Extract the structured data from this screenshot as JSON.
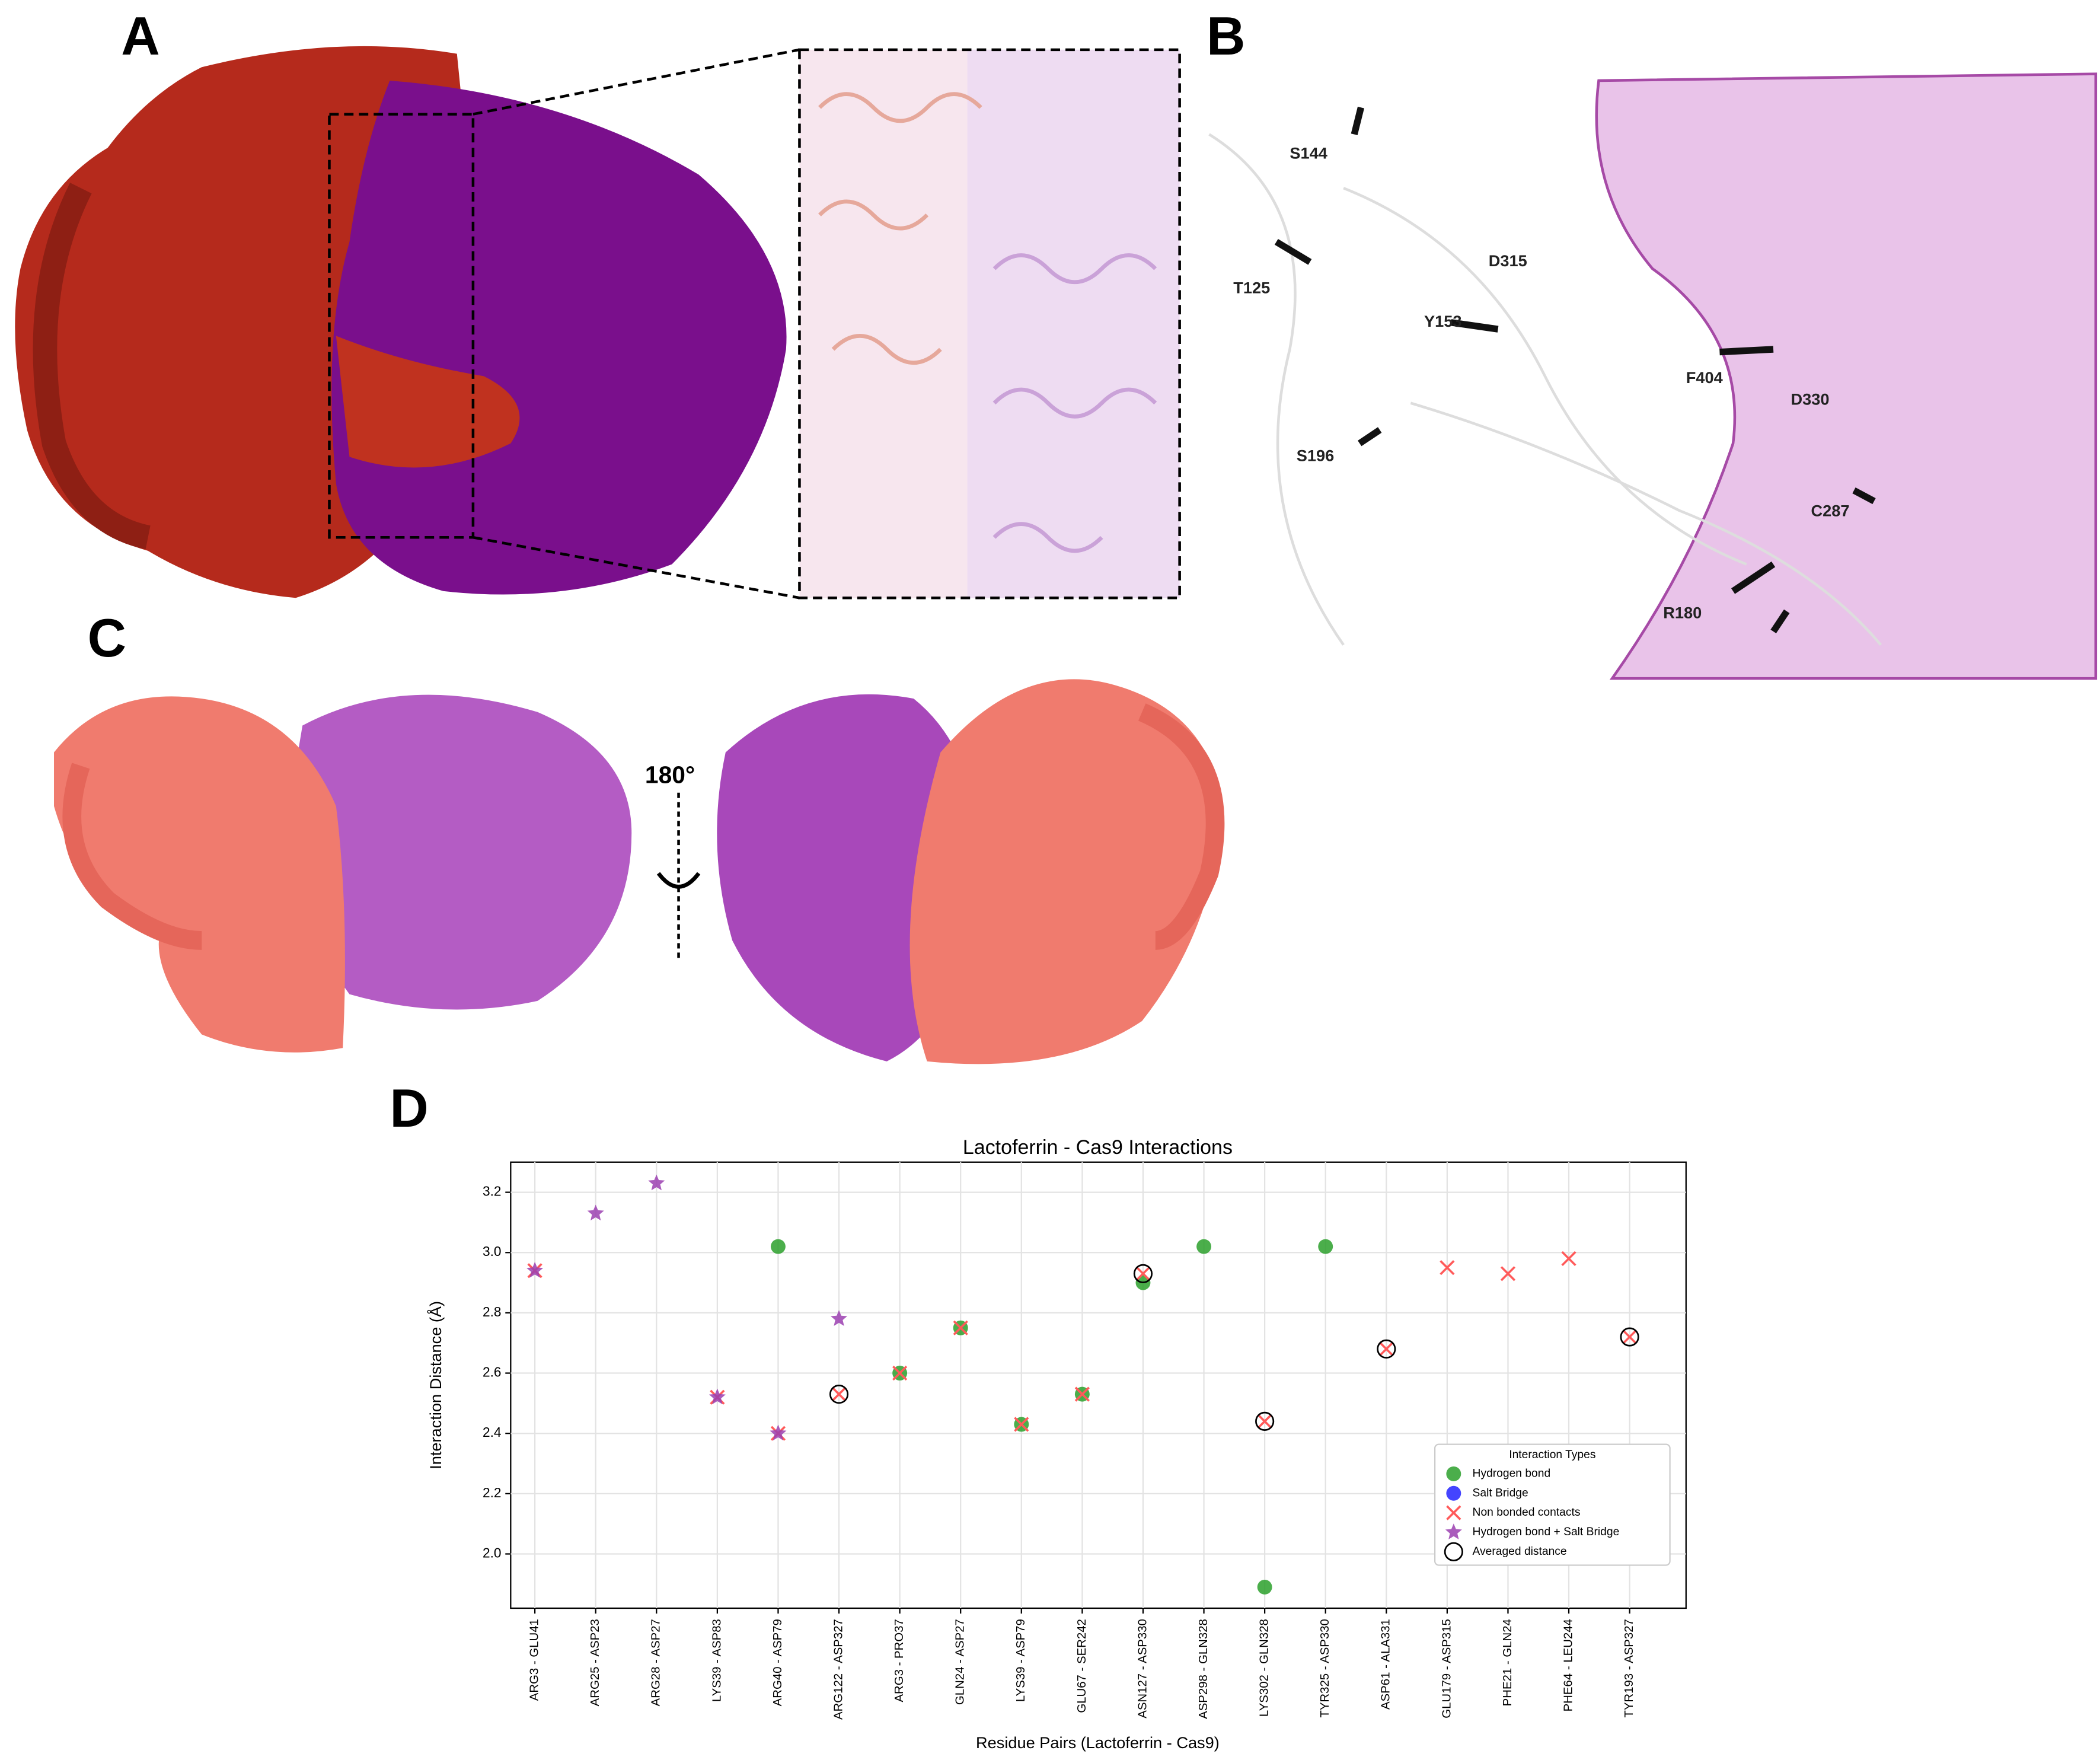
{
  "panels": {
    "A": "A",
    "B": "B",
    "C": "C",
    "D": "D"
  },
  "panel_b_labels": [
    "S144",
    "T125",
    "D315",
    "Y153",
    "F404",
    "D330",
    "S196",
    "C287",
    "R180"
  ],
  "panel_c_label": "180°",
  "chart_data": {
    "type": "scatter",
    "title": "Lactoferrin - Cas9 Interactions",
    "x_label": "Residue Pairs (Lactoferrin - Cas9)",
    "y_label": "Interaction Distance (Å)",
    "categories": [
      "ARG3 - GLU41",
      "ARG25 - ASP23",
      "ARG28 - ASP27",
      "LYS39 - ASP83",
      "ARG40 - ASP79",
      "ARG122 - ASP327",
      "ARG3 - PRO37",
      "GLN24 - ASP27",
      "LYS39 - ASP79",
      "GLU67 - SER242",
      "ASN127 - ASP330",
      "ASP298 - GLN328",
      "LYS302 - GLN328",
      "TYR325 - ASP330",
      "ASP61 - ALA331",
      "GLU179 - ASP315",
      "PHE21 - GLN24",
      "PHE64 - LEU244",
      "TYR193 - ASP327"
    ],
    "series": [
      {
        "name": "Hydrogen bond",
        "color": "#2ca02c",
        "marker": "circle",
        "values": [
          null,
          null,
          null,
          null,
          3.02,
          null,
          2.6,
          2.75,
          2.43,
          2.53,
          2.9,
          3.02,
          1.89,
          3.02,
          null,
          null,
          null,
          null,
          null
        ]
      },
      {
        "name": "Salt Bridge",
        "color": "#2323ff",
        "marker": "circle",
        "values": [
          null,
          null,
          null,
          null,
          null,
          null,
          null,
          null,
          null,
          null,
          null,
          null,
          null,
          null,
          null,
          null,
          null,
          null,
          null
        ]
      },
      {
        "name": "Non bonded contacts",
        "color": "#ff5a5a",
        "marker": "cross",
        "values": [
          2.94,
          null,
          null,
          2.52,
          2.4,
          2.53,
          2.6,
          2.75,
          2.43,
          2.53,
          2.93,
          null,
          2.44,
          null,
          2.68,
          2.95,
          2.93,
          2.98,
          2.72
        ]
      },
      {
        "name": "Hydrogen bond + Salt Bridge",
        "color": "#9b3fb0",
        "marker": "star",
        "values": [
          2.94,
          3.13,
          3.23,
          2.52,
          2.4,
          2.78,
          null,
          null,
          null,
          null,
          null,
          null,
          null,
          null,
          null,
          null,
          null,
          null,
          null
        ]
      },
      {
        "name": "Averaged distance",
        "color": "#000000",
        "marker": "open-circle",
        "values": [
          null,
          null,
          null,
          null,
          null,
          2.53,
          null,
          null,
          null,
          null,
          2.93,
          null,
          2.44,
          null,
          2.68,
          null,
          null,
          null,
          2.72
        ]
      }
    ],
    "legend_title": "Interaction Types",
    "legend": "lower right",
    "ylim": [
      1.82,
      3.3
    ],
    "yticks": [
      {
        "value": 2.0,
        "label": "2.0"
      },
      {
        "value": 2.2,
        "label": "2.2"
      },
      {
        "value": 2.4,
        "label": "2.4"
      },
      {
        "value": 2.6,
        "label": "2.6"
      },
      {
        "value": 2.8,
        "label": "2.8"
      },
      {
        "value": 3.0,
        "label": "3.0"
      },
      {
        "value": 3.2,
        "label": "3.2"
      }
    ],
    "grid": true
  }
}
